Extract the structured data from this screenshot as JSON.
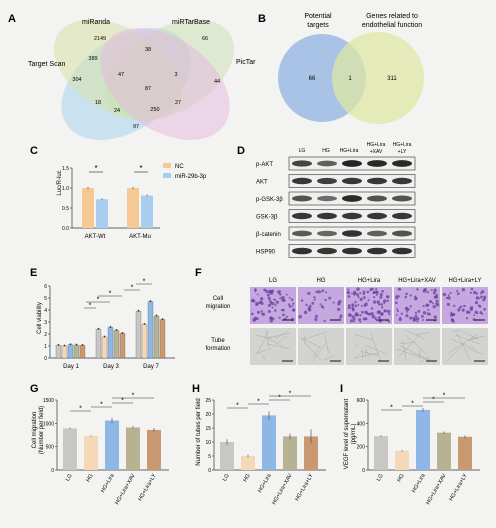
{
  "panels": {
    "A": {
      "label": "A",
      "sets": [
        "miRanda",
        "miRTarBase",
        "Target Scan",
        "PicTar"
      ],
      "counts": [
        "2149",
        "38",
        "66",
        "389",
        "47",
        "3",
        "304",
        "44",
        "87",
        "18",
        "24",
        "250",
        "27",
        "97"
      ]
    },
    "B": {
      "label": "B",
      "sets": [
        "Potential",
        "targets",
        "Genes related to",
        "endothelial function"
      ],
      "counts": [
        "66",
        "1",
        "311"
      ]
    },
    "C": {
      "label": "C",
      "ylabel": "Luc/R-luc",
      "yticks": [
        "0.0",
        "0.5",
        "1.0",
        "1.5"
      ],
      "legend": [
        "NC",
        "miR-29b-3p"
      ],
      "star": "*"
    },
    "D": {
      "label": "D",
      "columns": [
        "LG",
        "HG",
        "HG+Lira",
        "HG+Lira",
        "+XAV",
        "HG+Lira",
        "+LY"
      ],
      "rows": [
        "p-AKT",
        "AKT",
        "p-GSK-3β",
        "GSK-3β",
        "β-catenin",
        "HSP90"
      ]
    },
    "E": {
      "label": "E",
      "ylabel": "Cell viability",
      "yticks": [
        "0",
        "1",
        "2",
        "3",
        "4",
        "5",
        "6"
      ],
      "days": [
        "Day 1",
        "Day 3",
        "Day 7"
      ],
      "star": "*"
    },
    "F": {
      "label": "F",
      "columns": [
        "LG",
        "HG",
        "HG+Lira",
        "HG+Lira+XAV",
        "HG+Lira+LY"
      ],
      "rows": [
        "Cell",
        "migration",
        "Tube",
        "formation"
      ]
    },
    "G": {
      "label": "G",
      "ylabel": "Cell migration",
      "ylabel2": "(Number per field)",
      "yticks": [
        "0",
        "500",
        "1000",
        "1500"
      ],
      "star": "*"
    },
    "H": {
      "label": "H",
      "ylabel": "Number of tubes per field",
      "yticks": [
        "0",
        "5",
        "10",
        "15",
        "20",
        "25"
      ],
      "star": "*"
    },
    "I": {
      "label": "I",
      "ylabel": "VEGF level of supernatant",
      "ylabel2": "(pg/mL)",
      "yticks": [
        "0",
        "200",
        "400",
        "600"
      ],
      "star": "*"
    }
  },
  "colors": {
    "LG": "#c9c7c5",
    "HG": "#f4d8b8",
    "HGLira": "#8fb7e6",
    "XAV": "#b7b392",
    "LY": "#c99a72",
    "NC": "#f6c894",
    "miR": "#a9cdee",
    "vennA1": "#a8d3ec",
    "vennA2": "#d7e2a8",
    "vennA3": "#c8e0b0",
    "vennA4": "#e5b8dd",
    "vennB1": "#8fb3e2",
    "vennB2": "#dfe7a4",
    "stain": "#8f63b8"
  },
  "chart_data": [
    {
      "type": "bar",
      "panel": "C",
      "categories": [
        "AKT-Wt",
        "AKT-Mu"
      ],
      "ylabel": "Luc/R-luc",
      "ylim": [
        0,
        1.5
      ],
      "series": [
        {
          "name": "NC",
          "values": [
            1.0,
            1.0
          ],
          "errors": [
            0.03,
            0.03
          ]
        },
        {
          "name": "miR-29b-3p",
          "values": [
            0.72,
            0.81
          ],
          "errors": [
            0.03,
            0.03
          ]
        }
      ]
    },
    {
      "type": "bar",
      "panel": "E",
      "categories": [
        "Day 1",
        "Day 3",
        "Day 7"
      ],
      "ylabel": "Cell viability",
      "ylim": [
        0,
        6
      ],
      "series": [
        {
          "name": "LG",
          "values": [
            1.05,
            2.4,
            3.9
          ]
        },
        {
          "name": "HG",
          "values": [
            1.0,
            1.75,
            2.8
          ]
        },
        {
          "name": "HG+Lira",
          "values": [
            1.1,
            2.55,
            4.7
          ]
        },
        {
          "name": "HG+Lira+XAV",
          "values": [
            1.08,
            2.3,
            3.5
          ]
        },
        {
          "name": "HG+Lira+LY",
          "values": [
            1.05,
            2.05,
            3.2
          ]
        }
      ]
    },
    {
      "type": "bar",
      "panel": "G",
      "categories": [
        "LG",
        "HG",
        "HG+Lira",
        "HG+Lira+XAV",
        "HG+Lira+LY"
      ],
      "ylabel": "Cell migration (Number per field)",
      "ylim": [
        0,
        1500
      ],
      "values": [
        890,
        730,
        1060,
        910,
        860
      ],
      "errors": [
        20,
        15,
        55,
        30,
        40
      ]
    },
    {
      "type": "bar",
      "panel": "H",
      "categories": [
        "LG",
        "HG",
        "HG+Lira",
        "HG+Lira+XAV",
        "HG+Lira+LY"
      ],
      "ylabel": "Number of tubes per field",
      "ylim": [
        0,
        25
      ],
      "values": [
        10,
        5,
        19.5,
        12,
        12
      ],
      "errors": [
        1,
        0.5,
        1.5,
        1,
        2.5
      ]
    },
    {
      "type": "bar",
      "panel": "I",
      "categories": [
        "LG",
        "HG",
        "HG+Lira",
        "HG+Lira+XAV",
        "HG+Lira+LY"
      ],
      "ylabel": "VEGF level of supernatant (pg/mL)",
      "ylim": [
        0,
        600
      ],
      "values": [
        290,
        165,
        515,
        320,
        285
      ],
      "errors": [
        8,
        6,
        18,
        10,
        12
      ]
    }
  ]
}
